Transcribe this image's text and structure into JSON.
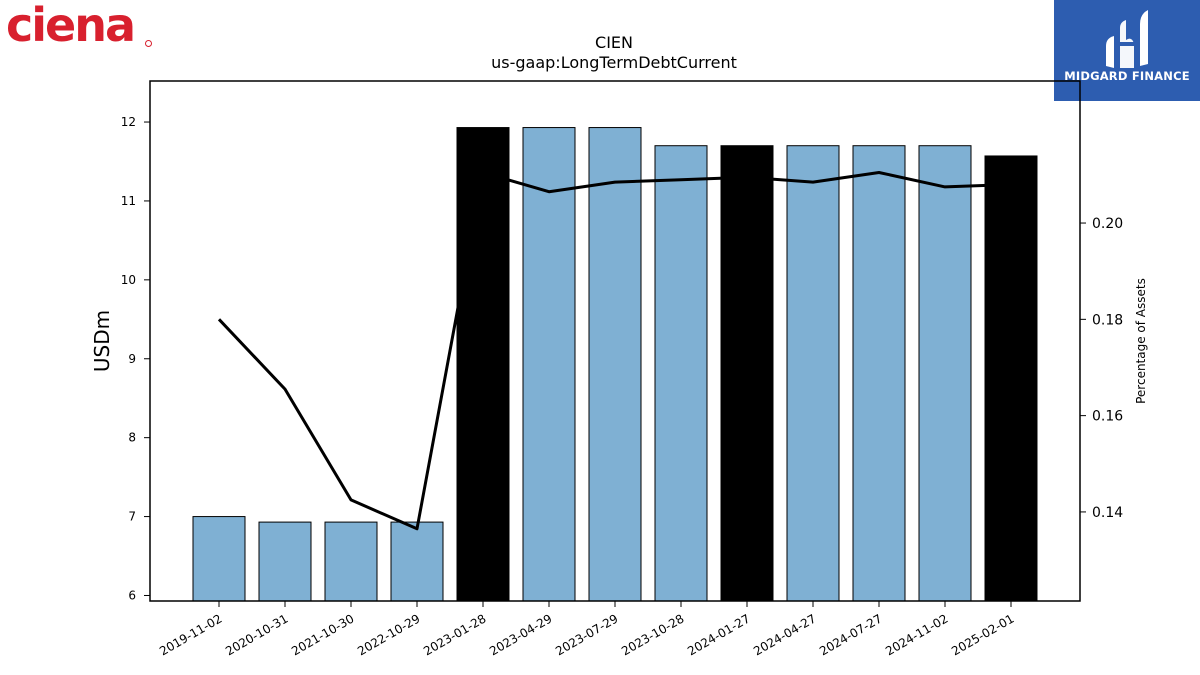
{
  "logos": {
    "left_text": "ciena",
    "right_text": "MIDGARD FINANCE",
    "left_color": "#d8202e",
    "right_bg": "#2d5db0"
  },
  "chart_data": {
    "type": "bar",
    "title": "CIEN",
    "subtitle": "us-gaap:LongTermDebtCurrent",
    "ylabel": "USDm",
    "y2label": "Percentage of Assets",
    "categories": [
      "2019-11-02",
      "2020-10-31",
      "2021-10-30",
      "2022-10-29",
      "2023-01-28",
      "2023-04-29",
      "2023-07-29",
      "2023-10-28",
      "2024-01-27",
      "2024-04-27",
      "2024-07-27",
      "2024-11-02",
      "2025-02-01"
    ],
    "series": [
      {
        "type": "bar",
        "values": [
          7.0,
          6.93,
          6.93,
          6.93,
          11.93,
          11.93,
          11.93,
          11.7,
          11.7,
          11.7,
          11.7,
          11.7,
          11.57
        ],
        "highlight": [
          false,
          false,
          false,
          false,
          true,
          false,
          false,
          false,
          true,
          false,
          false,
          false,
          true
        ],
        "color": "#7fb0d3",
        "highlight_color": "#000000"
      },
      {
        "type": "line",
        "axis": "right",
        "values": [
          0.18,
          0.1655,
          0.1425,
          0.1365,
          0.2105,
          0.2065,
          0.2085,
          0.209,
          0.2095,
          0.2085,
          0.2105,
          0.2075,
          0.208
        ],
        "color": "#000000"
      }
    ],
    "ylim": [
      5.93,
      12.52
    ],
    "y2lim": [
      0.1215,
      0.2295
    ],
    "yticks": [
      6,
      7,
      8,
      9,
      10,
      11,
      12
    ],
    "y2ticks": [
      "0.14",
      "0.16",
      "0.18",
      "0.20"
    ],
    "grid": false,
    "legend": "none"
  }
}
